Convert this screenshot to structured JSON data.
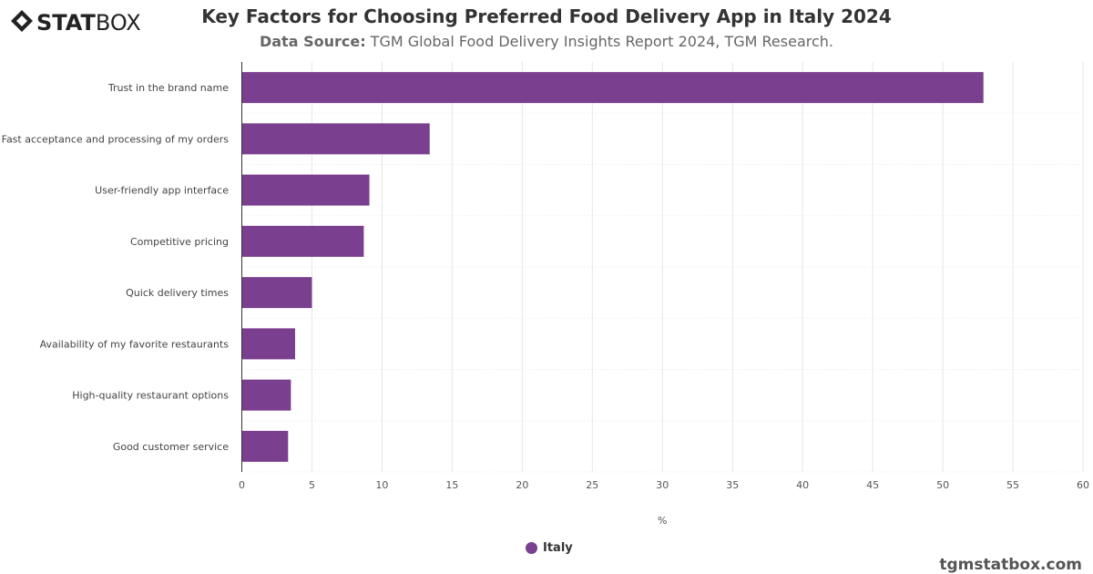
{
  "logo": {
    "text": "STATBOX"
  },
  "header": {
    "title": "Key Factors for Choosing Preferred Food Delivery App in Italy 2024",
    "source_label": "Data Source:",
    "source_text": " TGM Global Food Delivery Insights Report 2024, TGM Research."
  },
  "chart_data": {
    "type": "bar",
    "orientation": "horizontal",
    "categories": [
      "Trust in the brand name",
      "Fast acceptance and processing of my orders",
      "User-friendly app interface",
      "Competitive pricing",
      "Quick delivery times",
      "Availability of my favorite restaurants",
      "High-quality restaurant options",
      "Good customer service"
    ],
    "series": [
      {
        "name": "Italy",
        "values": [
          52.9,
          13.4,
          9.1,
          8.7,
          5.0,
          3.8,
          3.5,
          3.3
        ],
        "color": "#7b3f8f"
      }
    ],
    "xlabel": "%",
    "xlim": [
      0,
      60
    ],
    "xticks": [
      0,
      5,
      10,
      15,
      20,
      25,
      30,
      35,
      40,
      45,
      50,
      55,
      60
    ],
    "grid": true,
    "legend": "bottom-center"
  },
  "footer": {
    "text": "tgmstatbox.com"
  }
}
